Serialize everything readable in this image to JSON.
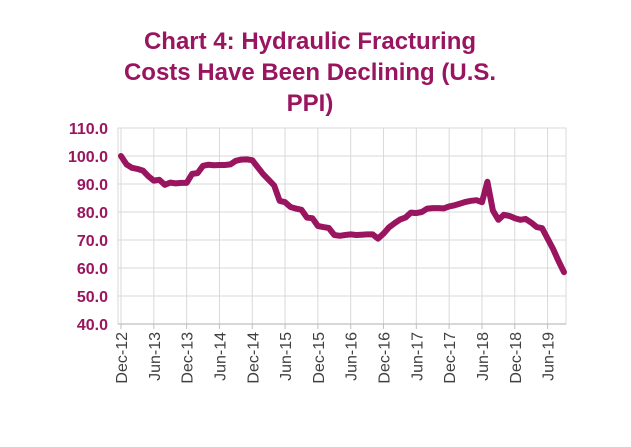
{
  "chart_data": {
    "type": "line",
    "title": "Chart 4:  Hydraulic Fracturing\nCosts Have Been Declining (U.S.\nPPI)",
    "xlabel": "",
    "ylabel": "",
    "ylim": [
      40,
      110
    ],
    "yticks": [
      "40.0",
      "50.0",
      "60.0",
      "70.0",
      "80.0",
      "90.0",
      "100.0",
      "110.0"
    ],
    "xticks": [
      "Dec-12",
      "Jun-13",
      "Dec-13",
      "Jun-14",
      "Dec-14",
      "Jun-15",
      "Dec-15",
      "Jun-16",
      "Dec-16",
      "Jun-17",
      "Dec-17",
      "Jun-18",
      "Dec-18",
      "Jun-19"
    ],
    "grid": true,
    "legend": "none",
    "series": [
      {
        "color": "#99155f",
        "x": [
          "2012-12",
          "2013-01",
          "2013-02",
          "2013-03",
          "2013-04",
          "2013-05",
          "2013-06",
          "2013-07",
          "2013-08",
          "2013-09",
          "2013-10",
          "2013-11",
          "2013-12",
          "2014-01",
          "2014-02",
          "2014-03",
          "2014-04",
          "2014-05",
          "2014-06",
          "2014-07",
          "2014-08",
          "2014-09",
          "2014-10",
          "2014-11",
          "2014-12",
          "2015-01",
          "2015-02",
          "2015-03",
          "2015-04",
          "2015-05",
          "2015-06",
          "2015-07",
          "2015-08",
          "2015-09",
          "2015-10",
          "2015-11",
          "2015-12",
          "2016-01",
          "2016-02",
          "2016-03",
          "2016-04",
          "2016-05",
          "2016-06",
          "2016-07",
          "2016-08",
          "2016-09",
          "2016-10",
          "2016-11",
          "2016-12",
          "2017-01",
          "2017-02",
          "2017-03",
          "2017-04",
          "2017-05",
          "2017-06",
          "2017-07",
          "2017-08",
          "2017-09",
          "2017-10",
          "2017-11",
          "2017-12",
          "2018-01",
          "2018-02",
          "2018-03",
          "2018-04",
          "2018-05",
          "2018-06",
          "2018-07",
          "2018-08",
          "2018-09",
          "2018-10",
          "2018-11",
          "2018-12",
          "2019-01",
          "2019-02",
          "2019-03",
          "2019-04",
          "2019-05",
          "2019-06",
          "2019-07",
          "2019-08",
          "2019-09"
        ],
        "values": [
          100.0,
          97.0,
          95.8,
          95.4,
          94.8,
          92.8,
          91.2,
          91.5,
          89.7,
          90.5,
          90.2,
          90.4,
          90.4,
          93.6,
          93.9,
          96.5,
          96.9,
          96.7,
          96.8,
          96.8,
          97.0,
          98.3,
          98.7,
          98.8,
          98.5,
          96.0,
          93.5,
          91.5,
          89.5,
          84.0,
          83.5,
          81.8,
          81.2,
          80.8,
          78.0,
          77.8,
          75.0,
          74.6,
          74.3,
          71.8,
          71.5,
          71.8,
          72.0,
          71.8,
          71.9,
          72.0,
          72.0,
          70.5,
          72.3,
          74.5,
          76.0,
          77.3,
          78.0,
          79.8,
          79.6,
          80.0,
          81.2,
          81.4,
          81.4,
          81.3,
          82.0,
          82.4,
          83.0,
          83.6,
          84.0,
          84.2,
          83.5,
          90.8,
          80.5,
          77.2,
          79.0,
          78.6,
          77.8,
          77.2,
          77.5,
          76.2,
          74.6,
          74.2,
          70.5,
          66.8,
          62.5,
          58.5
        ]
      }
    ]
  }
}
